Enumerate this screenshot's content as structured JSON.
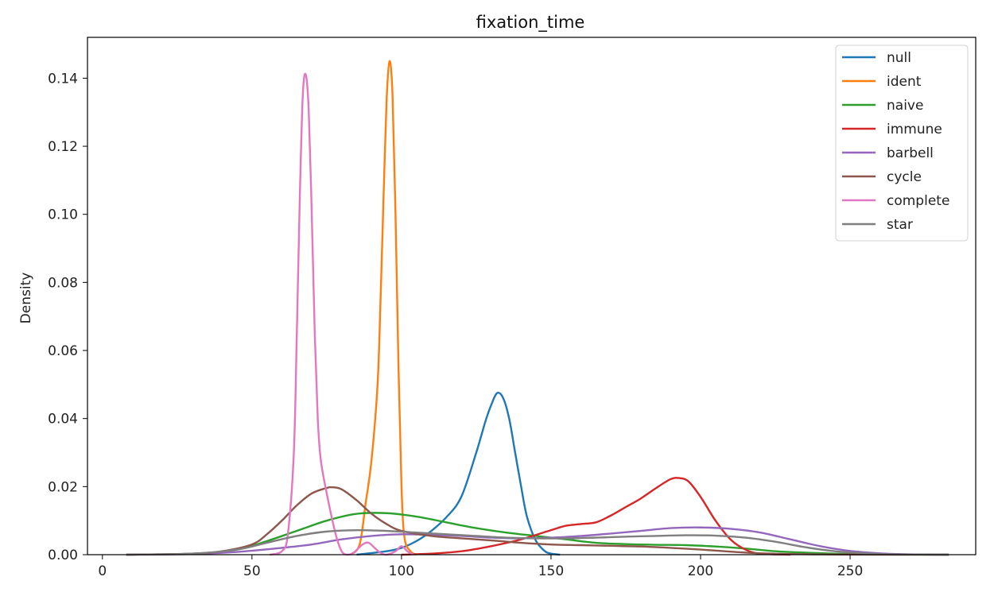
{
  "chart_data": {
    "type": "line",
    "title": "fixation_time",
    "xlabel": "",
    "ylabel": "Density",
    "xlim": [
      -5,
      292
    ],
    "ylim": [
      0,
      0.152
    ],
    "xticks": [
      0,
      50,
      100,
      150,
      200,
      250
    ],
    "yticks": [
      0.0,
      0.02,
      0.04,
      0.06,
      0.08,
      0.1,
      0.12,
      0.14
    ],
    "ytick_labels": [
      "0.00",
      "0.02",
      "0.04",
      "0.06",
      "0.08",
      "0.10",
      "0.12",
      "0.14"
    ],
    "legend_position": "top-right",
    "series": [
      {
        "name": "null",
        "color": "#1f77b4",
        "x": [
          85,
          95,
          100,
          105,
          110,
          115,
          120,
          125,
          128,
          130,
          132,
          134,
          136,
          138,
          140,
          142,
          145,
          148,
          150,
          153
        ],
        "y": [
          0.0,
          0.001,
          0.002,
          0.004,
          0.007,
          0.011,
          0.017,
          0.03,
          0.039,
          0.044,
          0.0475,
          0.046,
          0.04,
          0.03,
          0.02,
          0.011,
          0.004,
          0.001,
          0.0003,
          0.0
        ]
      },
      {
        "name": "ident",
        "color": "#ff7f0e",
        "x": [
          83,
          86,
          88,
          90,
          92,
          93,
          94,
          95,
          96,
          97,
          98,
          99,
          100,
          101,
          103,
          105
        ],
        "y": [
          0.0,
          0.003,
          0.015,
          0.028,
          0.05,
          0.075,
          0.105,
          0.133,
          0.145,
          0.135,
          0.1,
          0.055,
          0.02,
          0.005,
          0.001,
          0.0
        ]
      },
      {
        "name": "naive",
        "color": "#2ca02c",
        "x": [
          8,
          30,
          45,
          55,
          65,
          75,
          85,
          95,
          105,
          115,
          125,
          135,
          145,
          155,
          165,
          175,
          185,
          195,
          205,
          215,
          225,
          235,
          245,
          255,
          265,
          283
        ],
        "y": [
          0.0,
          0.0003,
          0.0015,
          0.004,
          0.007,
          0.01,
          0.012,
          0.0122,
          0.0112,
          0.0095,
          0.0078,
          0.0065,
          0.0055,
          0.0045,
          0.0035,
          0.0031,
          0.0029,
          0.0028,
          0.0024,
          0.0018,
          0.001,
          0.0006,
          0.0003,
          0.0001,
          3e-05,
          0.0
        ]
      },
      {
        "name": "immune",
        "color": "#d62728",
        "x": [
          100,
          110,
          120,
          130,
          140,
          150,
          155,
          160,
          165,
          170,
          175,
          180,
          185,
          190,
          193,
          196,
          200,
          205,
          210,
          215,
          220,
          230
        ],
        "y": [
          0.0,
          0.0003,
          0.001,
          0.0025,
          0.0045,
          0.0072,
          0.0085,
          0.009,
          0.0095,
          0.0115,
          0.014,
          0.0165,
          0.0195,
          0.0222,
          0.0225,
          0.0215,
          0.017,
          0.01,
          0.0045,
          0.0015,
          0.0003,
          0.0
        ]
      },
      {
        "name": "barbell",
        "color": "#9467bd",
        "x": [
          8,
          30,
          45,
          60,
          70,
          80,
          90,
          100,
          110,
          120,
          130,
          140,
          150,
          160,
          170,
          180,
          190,
          200,
          210,
          220,
          230,
          240,
          250,
          260,
          270,
          283
        ],
        "y": [
          0.0,
          0.0002,
          0.0008,
          0.002,
          0.003,
          0.0045,
          0.0055,
          0.006,
          0.0058,
          0.0055,
          0.005,
          0.0048,
          0.005,
          0.0055,
          0.0062,
          0.007,
          0.0078,
          0.008,
          0.0076,
          0.0065,
          0.0045,
          0.0025,
          0.0011,
          0.0004,
          0.0001,
          0.0
        ]
      },
      {
        "name": "cycle",
        "color": "#8c564b",
        "x": [
          8,
          30,
          40,
          50,
          55,
          60,
          65,
          70,
          75,
          77,
          80,
          85,
          90,
          95,
          100,
          110,
          120,
          130,
          140,
          150,
          160,
          170,
          180,
          190,
          200,
          210,
          220,
          240,
          260,
          283
        ],
        "y": [
          0.0,
          0.0003,
          0.001,
          0.003,
          0.006,
          0.01,
          0.0145,
          0.018,
          0.0196,
          0.0198,
          0.0192,
          0.016,
          0.012,
          0.009,
          0.007,
          0.0055,
          0.0048,
          0.0042,
          0.0035,
          0.003,
          0.0028,
          0.0026,
          0.0024,
          0.002,
          0.0015,
          0.0009,
          0.0004,
          0.0001,
          3e-05,
          0.0
        ]
      },
      {
        "name": "complete",
        "color": "#e377c2",
        "x": [
          56,
          60,
          62,
          64,
          65,
          66,
          67,
          68,
          69,
          70,
          71,
          72,
          73,
          75,
          78,
          80,
          82,
          84,
          87,
          89,
          91,
          93,
          95,
          98,
          100,
          102,
          104
        ],
        "y": [
          0.0,
          0.001,
          0.006,
          0.03,
          0.065,
          0.105,
          0.135,
          0.141,
          0.13,
          0.1,
          0.065,
          0.04,
          0.028,
          0.018,
          0.006,
          0.001,
          0.0,
          0.0006,
          0.003,
          0.0035,
          0.002,
          0.0005,
          0.0,
          0.001,
          0.0025,
          0.001,
          0.0
        ]
      },
      {
        "name": "star",
        "color": "#7f7f7f",
        "x": [
          8,
          30,
          45,
          55,
          65,
          75,
          85,
          95,
          105,
          115,
          125,
          135,
          145,
          155,
          165,
          175,
          185,
          195,
          205,
          215,
          225,
          235,
          245,
          255,
          265,
          283
        ],
        "y": [
          0.0,
          0.0003,
          0.0015,
          0.0035,
          0.0055,
          0.0068,
          0.0072,
          0.007,
          0.0065,
          0.006,
          0.0055,
          0.005,
          0.0048,
          0.0048,
          0.005,
          0.0053,
          0.0055,
          0.0057,
          0.0056,
          0.005,
          0.0038,
          0.0022,
          0.001,
          0.0004,
          0.0001,
          0.0
        ]
      }
    ]
  }
}
